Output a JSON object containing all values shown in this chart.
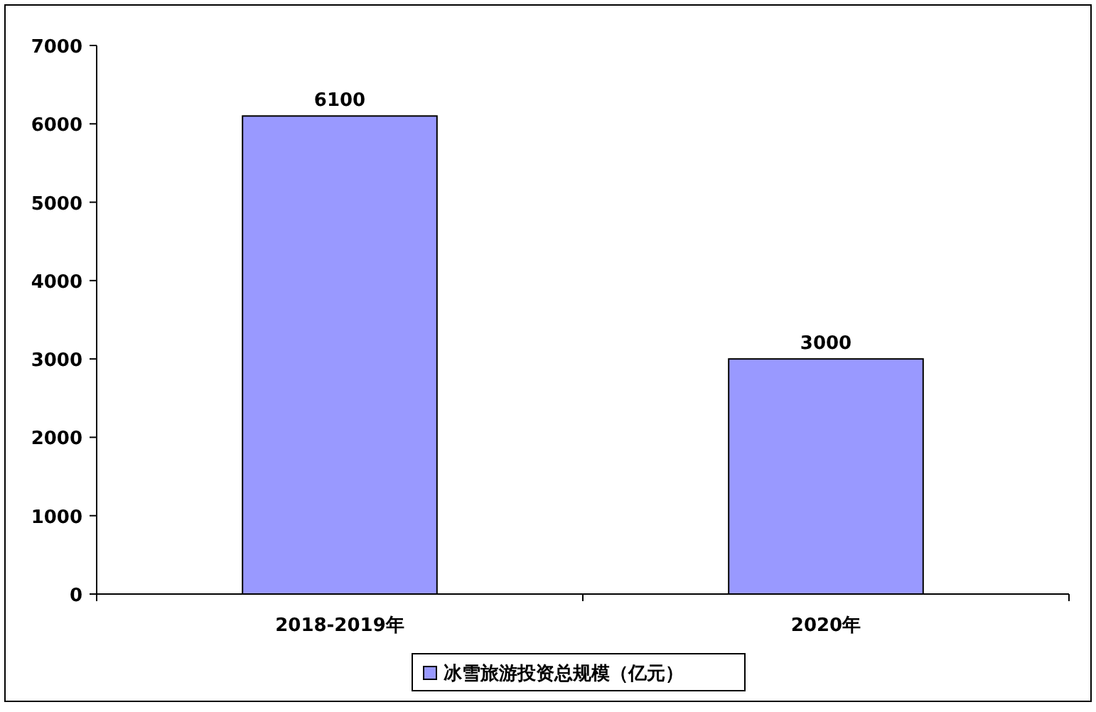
{
  "chart_data": {
    "type": "bar",
    "categories": [
      "2018-2019年",
      "2020年"
    ],
    "series": [
      {
        "name": "冰雪旅游投资总规模（亿元）",
        "color": "#9999ff",
        "values": [
          6100,
          3000
        ]
      }
    ],
    "ylim": [
      0,
      7000
    ],
    "yticks": [
      0,
      1000,
      2000,
      3000,
      4000,
      5000,
      6000,
      7000
    ],
    "data_labels": true,
    "legend": "bottom"
  }
}
